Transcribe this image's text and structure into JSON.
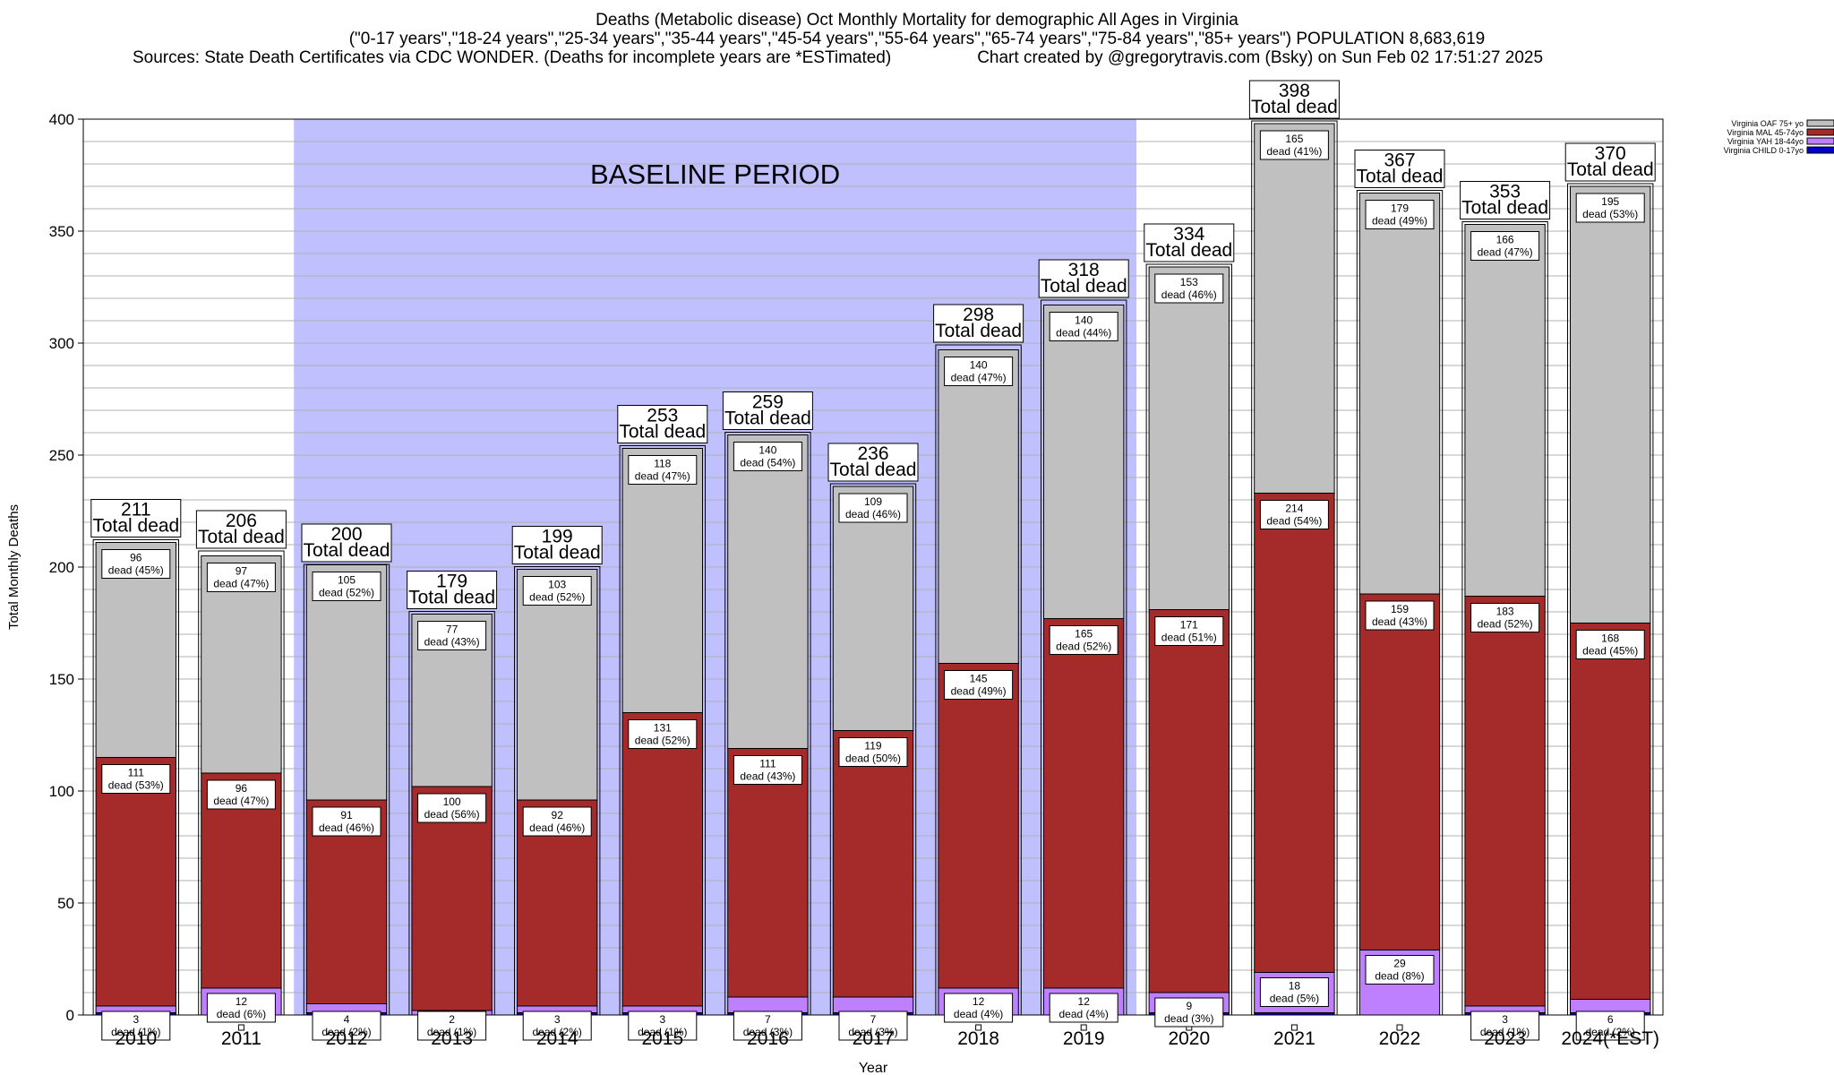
{
  "title": {
    "line1": "Deaths (Metabolic disease) Oct Monthly Mortality for demographic All Ages in Virginia",
    "line2": "(\"0-17 years\",\"18-24 years\",\"25-34 years\",\"35-44 years\",\"45-54 years\",\"55-64 years\",\"65-74 years\",\"75-84 years\",\"85+ years\") POPULATION 8,683,619",
    "line3_left": "Sources: State Death Certificates via CDC WONDER. (Deaths for incomplete years are *ESTimated)",
    "line3_right": "Chart created by @gregorytravis.com (Bsky) on Sun Feb 02 17:51:27 2025"
  },
  "chart_data": {
    "type": "bar",
    "stacked": true,
    "xlabel": "Year",
    "ylabel": "Total Monthly Deaths",
    "ylim": [
      0,
      400
    ],
    "yticks": [
      0,
      50,
      100,
      150,
      200,
      250,
      300,
      350,
      400
    ],
    "grid": true,
    "legend_position": "top-right",
    "categories": [
      "2010",
      "2011",
      "2012",
      "2013",
      "2014",
      "2015",
      "2016",
      "2017",
      "2018",
      "2019",
      "2020",
      "2021",
      "2022",
      "2023",
      "2024(*EST)"
    ],
    "series": [
      {
        "name": "Virginia CHILD 0-17yo",
        "color": "#0000cc",
        "values": [
          1,
          0,
          1,
          0,
          1,
          1,
          1,
          1,
          0,
          0,
          1,
          1,
          0,
          1,
          1
        ]
      },
      {
        "name": "Virginia YAH 18-44yo",
        "color": "#bf80ff",
        "values": [
          3,
          12,
          4,
          2,
          3,
          3,
          7,
          7,
          12,
          12,
          9,
          18,
          29,
          3,
          6
        ]
      },
      {
        "name": "Virginia MAL 45-74yo",
        "color": "#a52a2a",
        "values": [
          111,
          96,
          91,
          100,
          92,
          131,
          111,
          119,
          145,
          165,
          171,
          214,
          159,
          183,
          168
        ]
      },
      {
        "name": "Virginia OAF 75+ yo",
        "color": "#c0c0c0",
        "values": [
          96,
          97,
          105,
          77,
          103,
          118,
          140,
          109,
          140,
          140,
          153,
          165,
          179,
          166,
          195
        ]
      }
    ],
    "segment_labels": {
      "yah": [
        "3\ndead (1%)",
        "12\ndead (6%)",
        "4\ndead (2%)",
        "2\ndead (1%)",
        "3\ndead (2%)",
        "3\ndead (1%)",
        "7\ndead (3%)",
        "7\ndead (3%)",
        "12\ndead (4%)",
        "12\ndead (4%)",
        "9\ndead (3%)",
        "18\ndead (5%)",
        "29\ndead (8%)",
        "3\ndead (1%)",
        "6\ndead (2%)"
      ],
      "mal": [
        "111\ndead (53%)",
        "96\ndead (47%)",
        "91\ndead (46%)",
        "100\ndead (56%)",
        "92\ndead (46%)",
        "131\ndead (52%)",
        "111\ndead (43%)",
        "119\ndead (50%)",
        "145\ndead (49%)",
        "165\ndead (52%)",
        "171\ndead (51%)",
        "214\ndead (54%)",
        "159\ndead (43%)",
        "183\ndead (52%)",
        "168\ndead (45%)"
      ],
      "oaf": [
        "96\ndead (45%)",
        "97\ndead (47%)",
        "105\ndead (52%)",
        "77\ndead (43%)",
        "103\ndead (52%)",
        "118\ndead (47%)",
        "140\ndead (54%)",
        "109\ndead (46%)",
        "140\ndead (47%)",
        "140\ndead (44%)",
        "153\ndead (46%)",
        "165\ndead (41%)",
        "179\ndead (49%)",
        "166\ndead (47%)",
        "195\ndead (53%)"
      ]
    },
    "totals": [
      211,
      206,
      200,
      179,
      199,
      253,
      259,
      236,
      298,
      318,
      334,
      398,
      367,
      353,
      370
    ],
    "total_suffix": "Total dead",
    "baseline": {
      "label": "BASELINE PERIOD",
      "from": "2012",
      "to": "2019",
      "color": "#c0c0ff"
    }
  }
}
